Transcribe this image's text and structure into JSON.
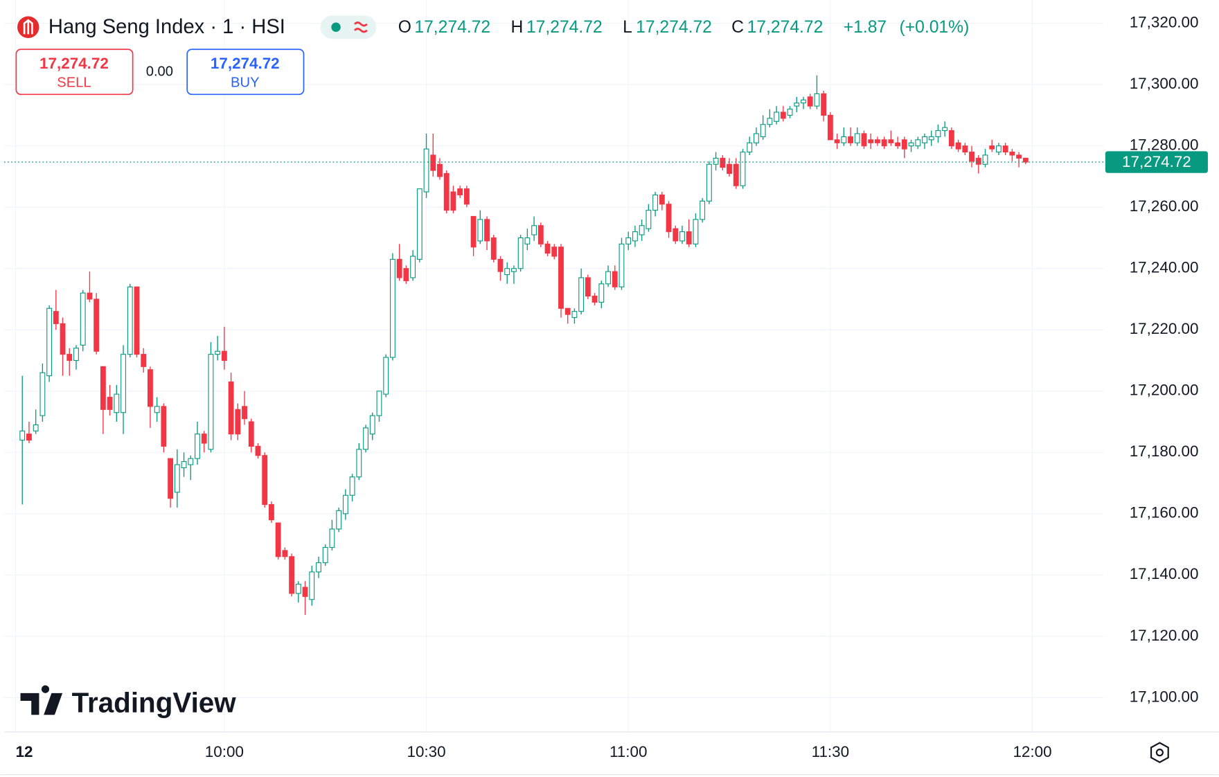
{
  "chart_data": {
    "type": "candlestick",
    "title": "Hang Seng Index · 1 · HSI",
    "legend": {
      "open_letter": "O",
      "high_letter": "H",
      "low_letter": "L",
      "close_letter": "C",
      "open": {
        "value": 17274.72,
        "label": "17,274.72"
      },
      "high": {
        "value": 17274.72,
        "label": "17,274.72"
      },
      "low": {
        "value": 17274.72,
        "label": "17,274.72"
      },
      "close": {
        "value": 17274.72,
        "label": "17,274.72"
      },
      "change": {
        "value": 1.87,
        "label": "+1.87"
      },
      "change_pct": {
        "value": 0.01,
        "label": "(+0.01%)"
      }
    },
    "trade": {
      "sell_price": {
        "value": 17274.72,
        "label": "17,274.72"
      },
      "sell": "SELL",
      "spread": {
        "value": 0,
        "label": "0.00"
      },
      "buy_price": {
        "value": 17274.72,
        "label": "17,274.72"
      },
      "buy": "BUY"
    },
    "last_price": {
      "value": 17274.72,
      "label": "17,274.72"
    },
    "watermark": "TradingView",
    "up_color": "#089981",
    "down_color": "#f23645",
    "grid": true,
    "xlim": [
      567.3,
      730.6
    ],
    "xticks": [
      {
        "value": 569,
        "label": "12"
      },
      {
        "value": 600,
        "label": "10:00"
      },
      {
        "value": 630,
        "label": "10:30"
      },
      {
        "value": 660,
        "label": "11:00"
      },
      {
        "value": 690,
        "label": "11:30"
      },
      {
        "value": 720,
        "label": "12:00"
      }
    ],
    "ylim": [
      17088.8,
      17327.6
    ],
    "yticks": [
      {
        "value": 17100,
        "label": "17,100.00"
      },
      {
        "value": 17120,
        "label": "17,120.00"
      },
      {
        "value": 17140,
        "label": "17,140.00"
      },
      {
        "value": 17160,
        "label": "17,160.00"
      },
      {
        "value": 17180,
        "label": "17,180.00"
      },
      {
        "value": 17200,
        "label": "17,200.00"
      },
      {
        "value": 17220,
        "label": "17,220.00"
      },
      {
        "value": 17240,
        "label": "17,240.00"
      },
      {
        "value": 17260,
        "label": "17,260.00"
      },
      {
        "value": 17280,
        "label": "17,280.00"
      },
      {
        "value": 17300,
        "label": "17,300.00"
      },
      {
        "value": 17320,
        "label": "17,320.00"
      }
    ],
    "x": [
      570,
      571,
      572,
      573,
      574,
      575,
      576,
      577,
      578,
      579,
      580,
      581,
      582,
      583,
      584,
      585,
      586,
      587,
      588,
      589,
      590,
      591,
      592,
      593,
      594,
      595,
      596,
      597,
      598,
      599,
      600,
      601,
      602,
      603,
      604,
      605,
      606,
      607,
      608,
      609,
      610,
      611,
      612,
      613,
      614,
      615,
      616,
      617,
      618,
      619,
      620,
      621,
      622,
      623,
      624,
      625,
      626,
      627,
      628,
      629,
      630,
      631,
      632,
      633,
      634,
      635,
      636,
      637,
      638,
      639,
      640,
      641,
      642,
      643,
      644,
      645,
      646,
      647,
      648,
      649,
      650,
      651,
      652,
      653,
      654,
      655,
      656,
      657,
      658,
      659,
      660,
      661,
      662,
      663,
      664,
      665,
      666,
      667,
      668,
      669,
      670,
      671,
      672,
      673,
      674,
      675,
      676,
      677,
      678,
      679,
      680,
      681,
      682,
      683,
      684,
      685,
      686,
      687,
      688,
      689,
      690,
      691,
      692,
      693,
      694,
      695,
      696,
      697,
      698,
      699,
      700,
      701,
      702,
      703,
      704,
      705,
      706,
      707,
      708,
      709,
      710,
      711,
      712,
      713,
      714,
      715,
      716,
      717,
      718,
      719
    ],
    "open": [
      17184,
      17186,
      17187,
      17192,
      17205,
      17226,
      17222,
      17212,
      17210,
      17215,
      17232,
      17230,
      17208,
      17198,
      17193,
      17193,
      17212,
      17234,
      17212,
      17207,
      17193,
      17195,
      17178,
      17167,
      17175,
      17176,
      17178,
      17186,
      17181,
      17212,
      17213,
      17203,
      17194,
      17195,
      17190,
      17182,
      17179,
      17163,
      17157,
      17148,
      17146,
      17134,
      17136,
      17132,
      17141,
      17144,
      17149,
      17155,
      17160,
      17166,
      17172,
      17181,
      17186,
      17192,
      17199,
      17211,
      17243,
      17240,
      17237,
      17243,
      17265,
      17277,
      17274,
      17271,
      17265,
      17266,
      17266,
      17257,
      17249,
      17256,
      17250,
      17243,
      17238,
      17239,
      17240,
      17248,
      17251,
      17254,
      17248,
      17247,
      17247,
      17227,
      17224,
      17226,
      17237,
      17231,
      17229,
      17235,
      17239,
      17234,
      17248,
      17249,
      17251,
      17253,
      17259,
      17264,
      17261,
      17253,
      17249,
      17252,
      17248,
      17256,
      17262,
      17274,
      17276,
      17274,
      17274,
      17267,
      17278,
      17281,
      17283,
      17287,
      17288,
      17291,
      17290,
      17293,
      17294,
      17296,
      17293,
      17297,
      17290,
      17282,
      17281,
      17283,
      17281,
      17284,
      17282,
      17282,
      17282,
      17282,
      17281,
      17282,
      17280,
      17280,
      17281,
      17282,
      17283,
      17285,
      17285,
      17281,
      17280,
      17278,
      17276,
      17274,
      17280,
      17278,
      17280,
      17278,
      17277,
      17276
    ],
    "high": [
      17205,
      17190,
      17194,
      17209,
      17228,
      17233,
      17224,
      17214,
      17215,
      17233,
      17239,
      17232,
      17208,
      17202,
      17202,
      17215,
      17235,
      17234,
      17214,
      17208,
      17198,
      17196,
      17178,
      17181,
      17180,
      17179,
      17190,
      17187,
      17216,
      17218,
      17221,
      17206,
      17196,
      17200,
      17191,
      17183,
      17180,
      17164,
      17157,
      17149,
      17147,
      17138,
      17138,
      17143,
      17146,
      17150,
      17158,
      17162,
      17168,
      17173,
      17183,
      17189,
      17193,
      17200,
      17212,
      17245,
      17248,
      17241,
      17246,
      17266,
      17284,
      17284,
      17276,
      17272,
      17267,
      17267,
      17267,
      17257,
      17259,
      17257,
      17251,
      17244,
      17242,
      17241,
      17251,
      17253,
      17257,
      17255,
      17249,
      17248,
      17248,
      17227,
      17227,
      17240,
      17238,
      17232,
      17236,
      17241,
      17241,
      17250,
      17252,
      17254,
      17256,
      17261,
      17265,
      17265,
      17262,
      17254,
      17254,
      17256,
      17258,
      17263,
      17275,
      17278,
      17277,
      17276,
      17276,
      17279,
      17283,
      17286,
      17290,
      17292,
      17293,
      17293,
      17293,
      17296,
      17296,
      17297,
      17303,
      17298,
      17291,
      17284,
      17286,
      17286,
      17286,
      17285,
      17284,
      17283,
      17283,
      17285,
      17283,
      17283,
      17282,
      17283,
      17284,
      17285,
      17287,
      17288,
      17286,
      17282,
      17281,
      17280,
      17277,
      17279,
      17282,
      17281,
      17281,
      17279,
      17278,
      17276
    ],
    "low": [
      17163,
      17183,
      17186,
      17190,
      17203,
      17220,
      17205,
      17205,
      17207,
      17213,
      17229,
      17212,
      17186,
      17192,
      17190,
      17186,
      17211,
      17211,
      17206,
      17188,
      17190,
      17180,
      17162,
      17162,
      17172,
      17171,
      17176,
      17180,
      17180,
      17210,
      17207,
      17184,
      17184,
      17189,
      17180,
      17178,
      17162,
      17157,
      17145,
      17145,
      17133,
      17131,
      17127,
      17130,
      17139,
      17143,
      17148,
      17154,
      17158,
      17164,
      17171,
      17180,
      17184,
      17190,
      17198,
      17210,
      17236,
      17235,
      17236,
      17242,
      17263,
      17270,
      17269,
      17258,
      17258,
      17263,
      17260,
      17244,
      17248,
      17246,
      17242,
      17236,
      17235,
      17235,
      17239,
      17246,
      17249,
      17247,
      17244,
      17243,
      17224,
      17222,
      17222,
      17225,
      17230,
      17228,
      17227,
      17234,
      17233,
      17233,
      17246,
      17247,
      17249,
      17252,
      17257,
      17259,
      17250,
      17248,
      17248,
      17247,
      17247,
      17255,
      17261,
      17272,
      17272,
      17270,
      17266,
      17266,
      17277,
      17280,
      17282,
      17286,
      17287,
      17288,
      17289,
      17291,
      17292,
      17292,
      17292,
      17288,
      17282,
      17279,
      17280,
      17280,
      17280,
      17279,
      17279,
      17280,
      17279,
      17280,
      17279,
      17276,
      17278,
      17279,
      17279,
      17280,
      17281,
      17283,
      17279,
      17278,
      17277,
      17273,
      17271,
      17273,
      17278,
      17277,
      17277,
      17275,
      17273,
      17274
    ],
    "close": [
      17187,
      17184,
      17189,
      17206,
      17227,
      17222,
      17212,
      17210,
      17214,
      17232,
      17230,
      17213,
      17194,
      17194,
      17199,
      17212,
      17234,
      17212,
      17208,
      17195,
      17195,
      17182,
      17165,
      17176,
      17177,
      17178,
      17186,
      17183,
      17212,
      17213,
      17210,
      17186,
      17186,
      17191,
      17182,
      17179,
      17163,
      17158,
      17146,
      17146,
      17134,
      17137,
      17133,
      17141,
      17144,
      17149,
      17155,
      17161,
      17166,
      17172,
      17181,
      17188,
      17192,
      17200,
      17211,
      17243,
      17237,
      17236,
      17244,
      17266,
      17279,
      17272,
      17270,
      17259,
      17259,
      17264,
      17261,
      17247,
      17256,
      17249,
      17243,
      17239,
      17240,
      17240,
      17250,
      17250,
      17254,
      17248,
      17245,
      17244,
      17227,
      17225,
      17226,
      17237,
      17231,
      17229,
      17235,
      17239,
      17234,
      17248,
      17250,
      17252,
      17254,
      17259,
      17264,
      17261,
      17252,
      17249,
      17252,
      17248,
      17256,
      17262,
      17274,
      17276,
      17273,
      17271,
      17267,
      17278,
      17281,
      17284,
      17287,
      17289,
      17291,
      17289,
      17292,
      17294,
      17295,
      17293,
      17297,
      17290,
      17282,
      17281,
      17283,
      17281,
      17284,
      17280,
      17281,
      17281,
      17280,
      17281,
      17280,
      17279,
      17281,
      17282,
      17283,
      17283,
      17285,
      17286,
      17280,
      17279,
      17278,
      17275,
      17274,
      17277,
      17279,
      17280,
      17278,
      17277,
      17276,
      17274.72
    ]
  }
}
